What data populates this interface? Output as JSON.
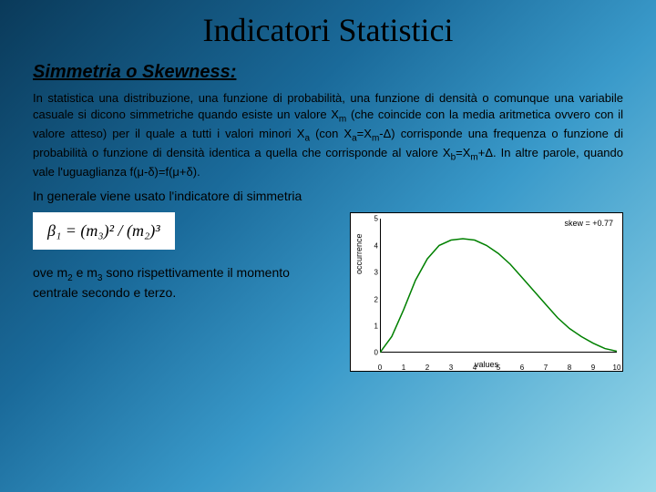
{
  "title": "Indicatori Statistici",
  "subtitle": "Simmetria o Skewness:",
  "paragraph_html": "In statistica una distribuzione, una funzione di probabilità, una funzione di densità o comunque una variabile casuale si dicono simmetriche quando esiste un valore X<span class='sub'>m</span> (che coincide con la media aritmetica ovvero con il valore atteso) per il quale a tutti i valori minori X<span class='sub'>a</span> (con X<span class='sub'>a</span>=X<span class='sub'>m</span>-Δ) corrisponde una frequenza o funzione di probabilità o funzione di densità identica a quella che corrisponde al valore X<span class='sub'>b</span>=X<span class='sub'>m</span>+Δ. In altre parole, quando vale l'uguaglianza f(μ-δ)=f(μ+δ).",
  "general_line": "In generale viene usato l'indicatore di simmetria",
  "formula": "β₁ = (m₃)² / (m₂)³",
  "moment_text_html": "ove m<span class='sub'>2</span> e m<span class='sub'>3</span> sono rispettivamente il momento centrale secondo e terzo.",
  "chart": {
    "type": "line",
    "xlabel": "values",
    "ylabel": "occurrence",
    "skew_text": "skew = +0.77",
    "line_color": "#008000",
    "line_width": 1.5,
    "background_color": "#ffffff",
    "xlim": [
      0,
      10
    ],
    "ylim": [
      0,
      5
    ],
    "xticks": [
      0,
      1,
      2,
      3,
      4,
      5,
      6,
      7,
      8,
      9,
      10
    ],
    "yticks": [
      0,
      1,
      2,
      3,
      4,
      5
    ],
    "x": [
      0,
      0.5,
      1,
      1.5,
      2,
      2.5,
      3,
      3.5,
      4,
      4.5,
      5,
      5.5,
      6,
      6.5,
      7,
      7.5,
      8,
      8.5,
      9,
      9.5,
      10
    ],
    "y": [
      0,
      0.6,
      1.6,
      2.7,
      3.5,
      4.0,
      4.2,
      4.25,
      4.2,
      4.0,
      3.7,
      3.3,
      2.8,
      2.3,
      1.8,
      1.3,
      0.9,
      0.6,
      0.35,
      0.15,
      0.05
    ]
  }
}
